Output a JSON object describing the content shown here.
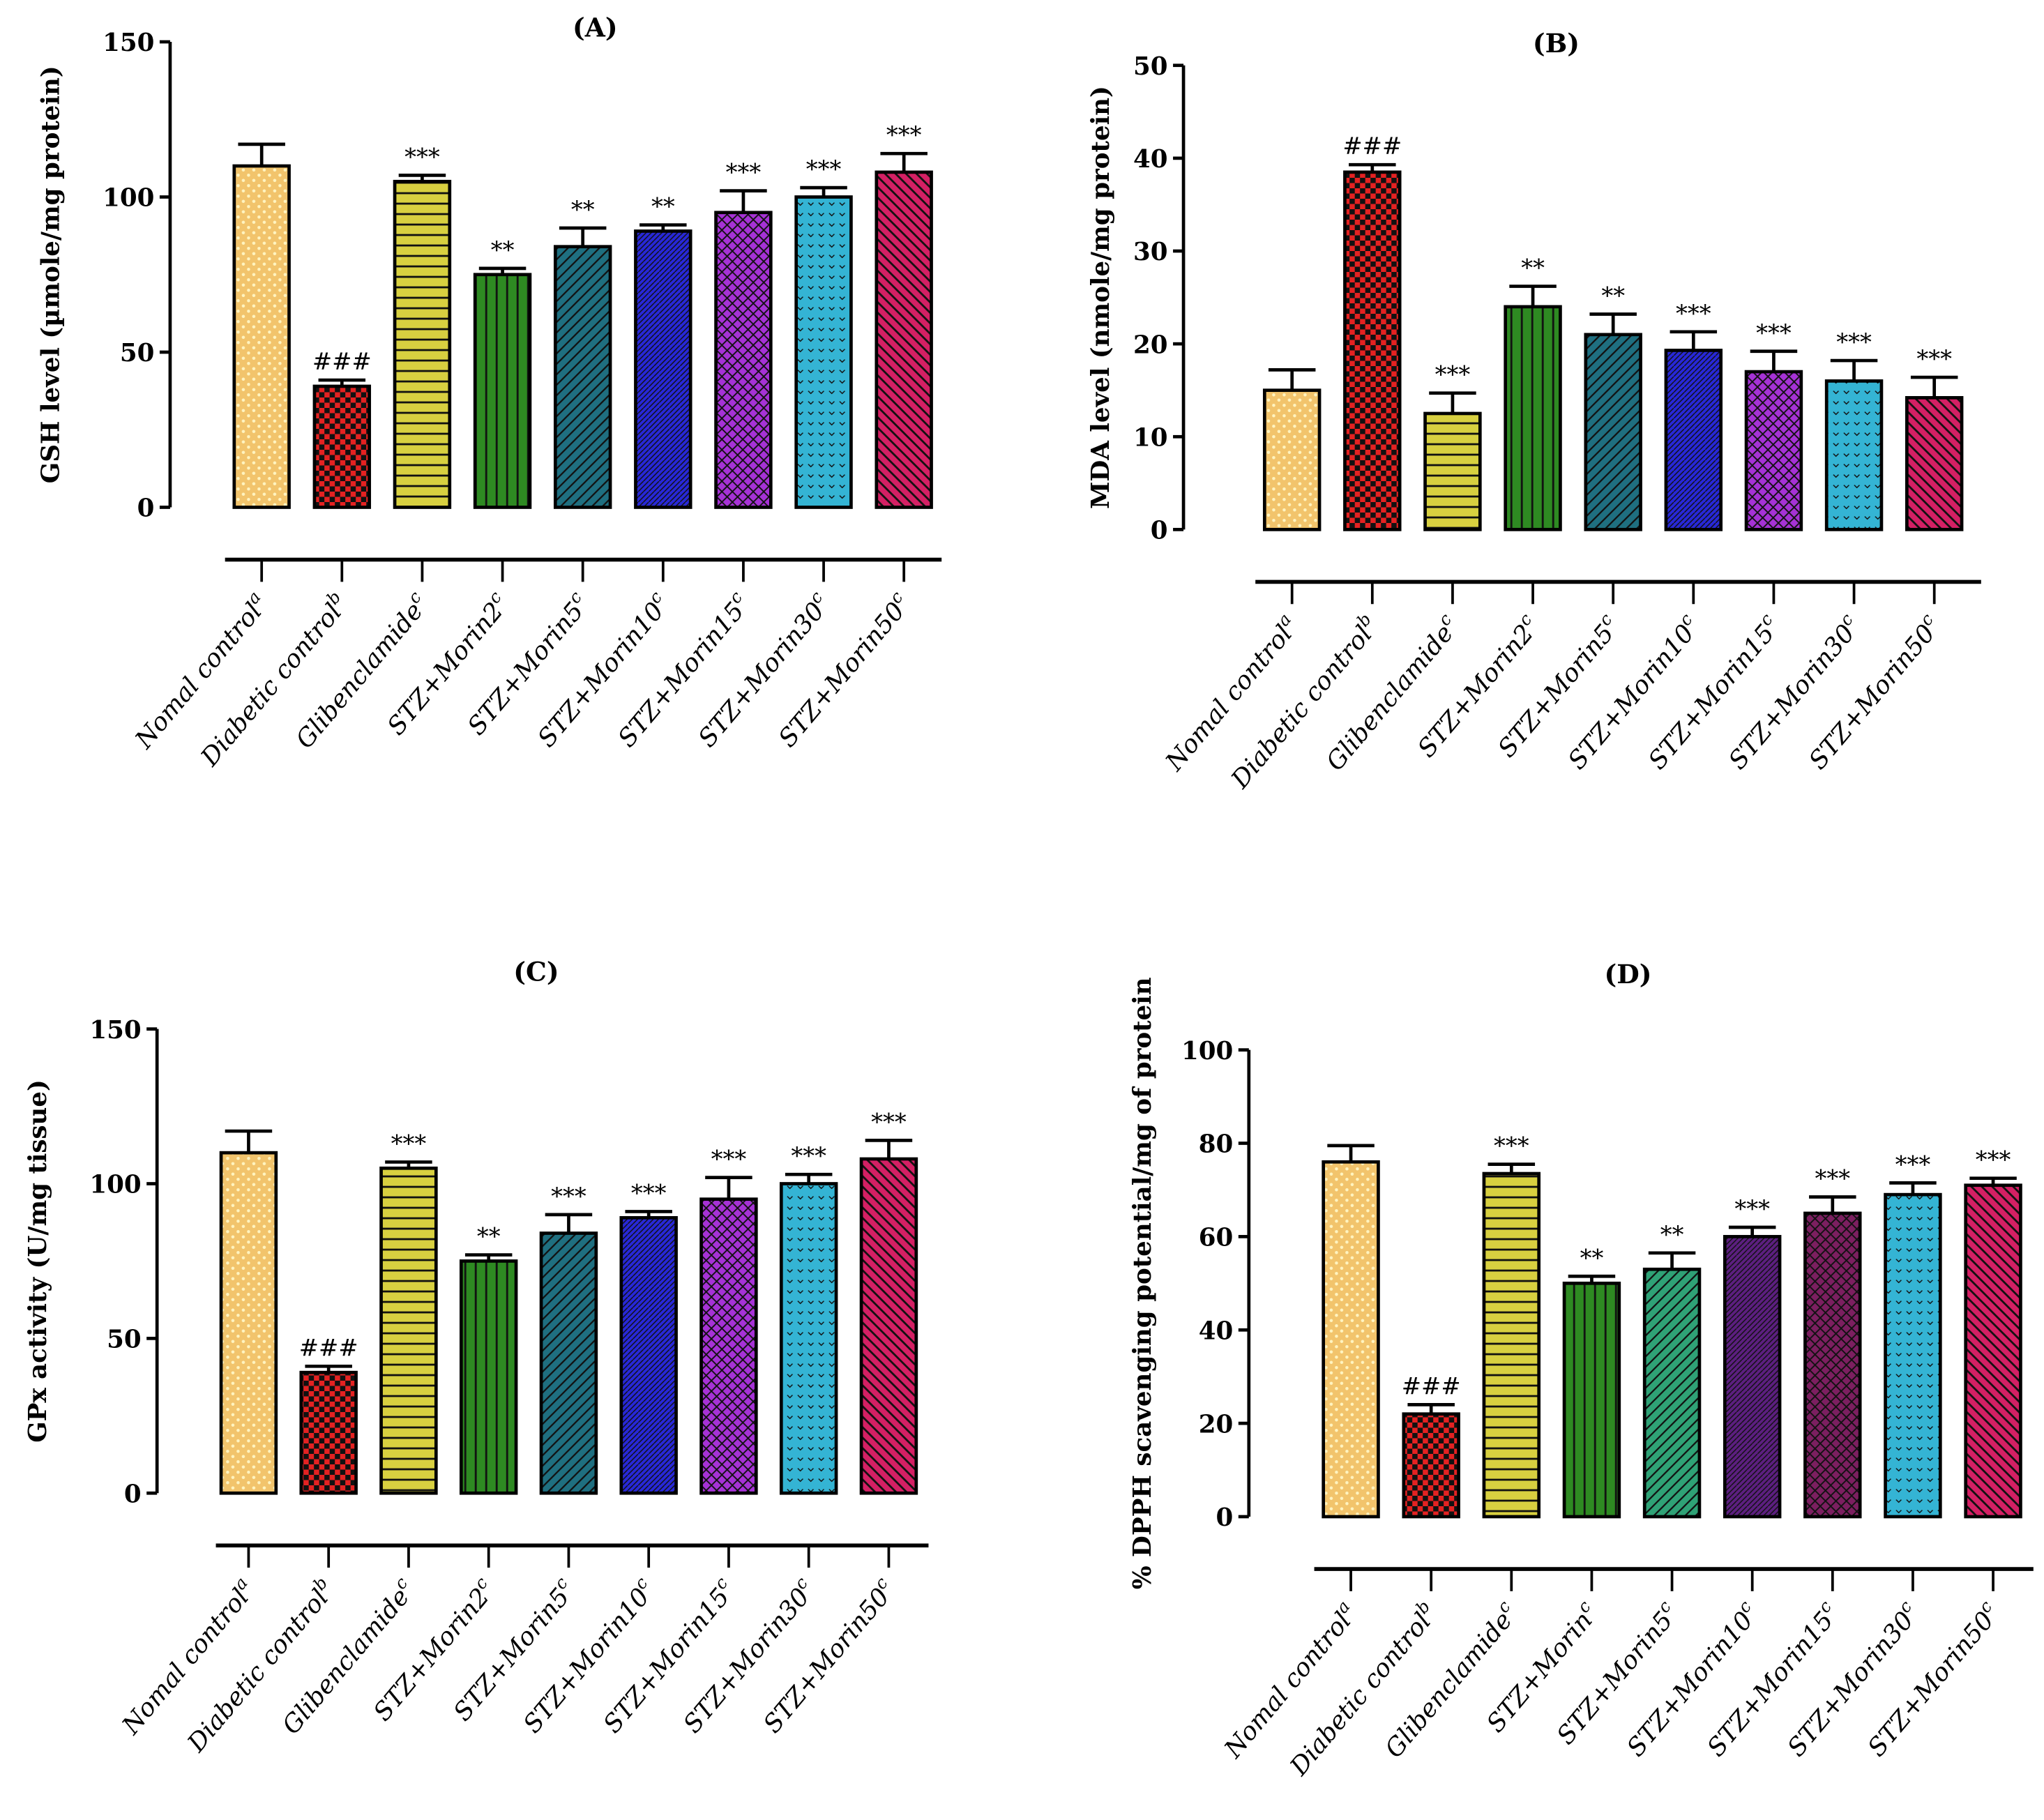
{
  "categories_note_free": true,
  "chart_data": [
    {
      "type": "bar",
      "title": "(A)",
      "ylabel": "GSH level (µmole/mg protein)",
      "ylim": [
        0,
        150
      ],
      "yticks": [
        0,
        50,
        100,
        150
      ],
      "grid": false,
      "categories": [
        "Nomal control",
        "Diabetic control",
        "Glibenclamide",
        "STZ+Morin2",
        "STZ+Morin5",
        "STZ+Morin10",
        "STZ+Morin15",
        "STZ+Morin30",
        "STZ+Morin50"
      ],
      "superscripts": [
        "a",
        "b",
        "c",
        "c",
        "c",
        "c",
        "c",
        "c",
        "c"
      ],
      "values": [
        110,
        39,
        105,
        75,
        84,
        89,
        95,
        100,
        108
      ],
      "errors": [
        7,
        2,
        2,
        2,
        6,
        2,
        7,
        3,
        6
      ],
      "annotations": [
        "",
        "###",
        "***",
        "**",
        "**",
        "**",
        "***",
        "***",
        "***"
      ],
      "colors": [
        "#f2c46c",
        "#e42222",
        "#d8d040",
        "#2e8a22",
        "#1f6f80",
        "#2828d8",
        "#a632d6",
        "#34b4d4",
        "#d42064"
      ],
      "patterns": [
        "dots",
        "checker",
        "hstripes",
        "vstripes",
        "diag",
        "diagfine",
        "cross",
        "chevron",
        "diagwide"
      ]
    },
    {
      "type": "bar",
      "title": "(B)",
      "ylabel": "MDA level (nmole/mg protein)",
      "ylim": [
        0,
        50
      ],
      "yticks": [
        0,
        10,
        20,
        30,
        40,
        50
      ],
      "grid": false,
      "categories": [
        "Nomal control",
        "Diabetic control",
        "Glibenclamide",
        "STZ+Morin2",
        "STZ+Morin5",
        "STZ+Morin10",
        "STZ+Morin15",
        "STZ+Morin30",
        "STZ+Morin50"
      ],
      "superscripts": [
        "a",
        "b",
        "c",
        "c",
        "c",
        "c",
        "c",
        "c",
        "c"
      ],
      "values": [
        15,
        38.5,
        12.5,
        24,
        21,
        19.3,
        17,
        16,
        14.2
      ],
      "errors": [
        2.2,
        0.8,
        2.2,
        2.2,
        2.2,
        2,
        2.2,
        2.2,
        2.2
      ],
      "annotations": [
        "",
        "###",
        "***",
        "**",
        "**",
        "***",
        "***",
        "***",
        "***"
      ],
      "colors": [
        "#f2c46c",
        "#e42222",
        "#d8d040",
        "#2e8a22",
        "#1f6f80",
        "#2828d8",
        "#a632d6",
        "#34b4d4",
        "#d42064"
      ],
      "patterns": [
        "dots",
        "checker",
        "hstripes",
        "vstripes",
        "diag",
        "diagfine",
        "cross",
        "chevron",
        "diagwide"
      ]
    },
    {
      "type": "bar",
      "title": "(C)",
      "ylabel": "GPx activity (U/mg tissue)",
      "ylim": [
        0,
        150
      ],
      "yticks": [
        0,
        50,
        100,
        150
      ],
      "grid": false,
      "categories": [
        "Nomal control",
        "Diabetic control",
        "Glibenclamide",
        "STZ+Morin2",
        "STZ+Morin5",
        "STZ+Morin10",
        "STZ+Morin15",
        "STZ+Morin30",
        "STZ+Morin50"
      ],
      "superscripts": [
        "a",
        "b",
        "c",
        "c",
        "c",
        "c",
        "c",
        "c",
        "c"
      ],
      "values": [
        110,
        39,
        105,
        75,
        84,
        89,
        95,
        100,
        108
      ],
      "errors": [
        7,
        2,
        2,
        2,
        6,
        2,
        7,
        3,
        6
      ],
      "annotations": [
        "",
        "###",
        "***",
        "**",
        "***",
        "***",
        "***",
        "***",
        "***"
      ],
      "colors": [
        "#f2c46c",
        "#e42222",
        "#d8d040",
        "#2e8a22",
        "#1f6f80",
        "#2828d8",
        "#a632d6",
        "#34b4d4",
        "#d42064"
      ],
      "patterns": [
        "dots",
        "checker",
        "hstripes",
        "vstripes",
        "diag",
        "diagfine",
        "cross",
        "chevron",
        "diagwide"
      ]
    },
    {
      "type": "bar",
      "title": "(D)",
      "ylabel": "% DPPH scavenging potential/mg of protein",
      "ylim": [
        0,
        100
      ],
      "yticks": [
        0,
        20,
        40,
        60,
        80,
        100
      ],
      "grid": false,
      "categories": [
        "Nomal control",
        "Diabetic control",
        "Glibenclamide",
        "STZ+Morin",
        "STZ+Morin5",
        "STZ+Morin10",
        "STZ+Morin15",
        "STZ+Morin30",
        "STZ+Morin50"
      ],
      "superscripts": [
        "a",
        "b",
        "c",
        "c",
        "c",
        "c",
        "c",
        "c",
        "c"
      ],
      "values": [
        76,
        22,
        73.5,
        50,
        53,
        60,
        65,
        69,
        71
      ],
      "errors": [
        3.5,
        2,
        2,
        1.5,
        3.5,
        2,
        3.5,
        2.5,
        1.5
      ],
      "annotations": [
        "",
        "###",
        "***",
        "**",
        "**",
        "***",
        "***",
        "***",
        "***"
      ],
      "colors": [
        "#f2c46c",
        "#e42222",
        "#d8d040",
        "#2e8a22",
        "#2fa276",
        "#5c1f80",
        "#7c1f60",
        "#34b4d4",
        "#d42064"
      ],
      "patterns": [
        "dots",
        "checker",
        "hstripes",
        "vstripes",
        "diag",
        "diagfine",
        "cross",
        "chevron",
        "diagwide"
      ]
    }
  ]
}
